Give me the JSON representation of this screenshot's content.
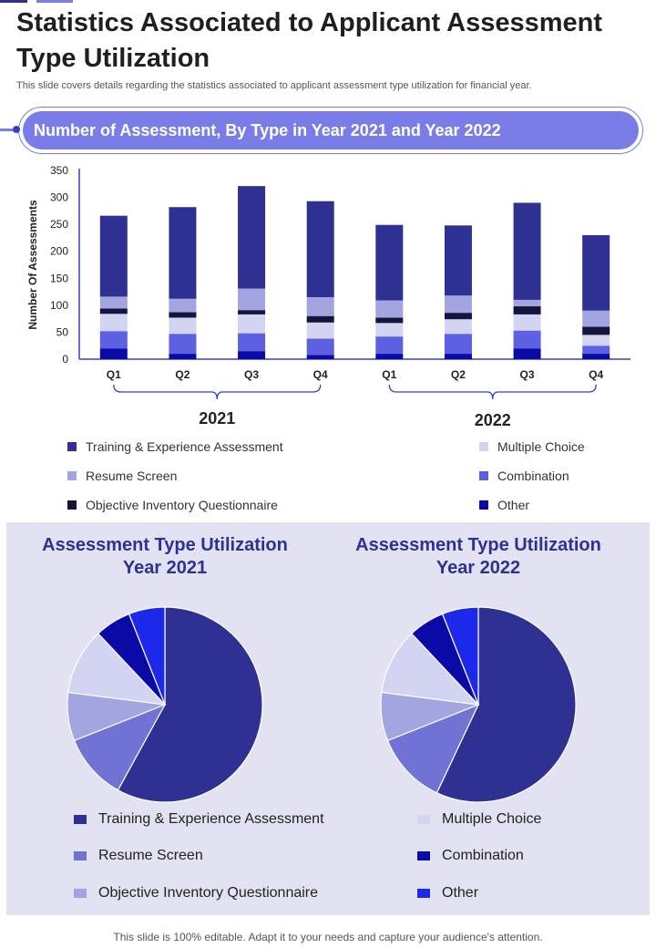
{
  "colors": {
    "accent": "#7a7de8",
    "dark_accent": "#2e3192",
    "panel_bg": "#e2e2f2",
    "series_colors": [
      "#2e3192",
      "#a3a5e0",
      "#14143c",
      "#d3d4f2",
      "#5d60e0",
      "#0a0aa6"
    ],
    "pie_colors": [
      "#2e3192",
      "#7072d4",
      "#a3a5e0",
      "#d3d4f2",
      "#0a0aa6",
      "#1d29ea"
    ]
  },
  "header": {
    "title": "Statistics Associated to Applicant Assessment Type Utilization",
    "subtitle": "This slide covers details regarding the statistics associated to applicant assessment type utilization for financial year."
  },
  "banner": {
    "title": "Number of Assessment, By Type in Year 2021 and Year 2022"
  },
  "chart_data": [
    {
      "type": "bar",
      "stacked": true,
      "title": "Number of Assessment, By Type in Year 2021 and Year 2022",
      "ylabel": "Number Of Assessments",
      "xlabel": "",
      "ylim": [
        0,
        350
      ],
      "yticks": [
        0,
        50,
        100,
        150,
        200,
        250,
        300,
        350
      ],
      "categories": [
        "Q1",
        "Q2",
        "Q3",
        "Q4",
        "Q1",
        "Q2",
        "Q3",
        "Q4"
      ],
      "groups": [
        {
          "label": "2021",
          "categories": [
            0,
            1,
            2,
            3
          ]
        },
        {
          "label": "2022",
          "categories": [
            4,
            5,
            6,
            7
          ]
        }
      ],
      "series": [
        {
          "name": "Other",
          "values": [
            20,
            10,
            15,
            8,
            10,
            10,
            20,
            10
          ]
        },
        {
          "name": "Combination",
          "values": [
            32,
            37,
            33,
            30,
            32,
            37,
            33,
            15
          ]
        },
        {
          "name": "Multiple Choice",
          "values": [
            32,
            30,
            35,
            30,
            25,
            27,
            30,
            20
          ]
        },
        {
          "name": "Objective Inventory Questionnaire",
          "values": [
            10,
            10,
            8,
            12,
            10,
            12,
            15,
            15
          ]
        },
        {
          "name": "Resume Screen",
          "values": [
            22,
            25,
            40,
            35,
            32,
            32,
            12,
            30
          ]
        },
        {
          "name": "Training & Experience Assessment",
          "values": [
            150,
            170,
            190,
            178,
            140,
            130,
            180,
            140
          ]
        }
      ],
      "legend": [
        "Training & Experience Assessment",
        "Multiple Choice",
        "Resume Screen",
        "Combination",
        "Objective Inventory Questionnaire",
        "Other"
      ]
    },
    {
      "type": "pie",
      "title": "Assessment Type Utilization Year 2021",
      "title_lines": [
        "Assessment Type Utilization",
        "Year 2021"
      ],
      "labels": [
        "Training & Experience Assessment",
        "Resume Screen",
        "Objective Inventory Questionnaire",
        "Multiple Choice",
        "Combination",
        "Other"
      ],
      "values": [
        58,
        11,
        8,
        11,
        6,
        6
      ]
    },
    {
      "type": "pie",
      "title": "Assessment Type Utilization Year 2022",
      "title_lines": [
        "Assessment Type Utilization",
        "Year  2022"
      ],
      "labels": [
        "Training & Experience Assessment",
        "Resume Screen",
        "Objective Inventory Questionnaire",
        "Multiple Choice",
        "Combination",
        "Other"
      ],
      "values": [
        57,
        12,
        8,
        11,
        6,
        6
      ]
    }
  ],
  "pie_legend": [
    "Training & Experience Assessment",
    "Multiple Choice",
    "Resume Screen",
    "Combination",
    "Objective Inventory  Questionnaire",
    "Other"
  ],
  "footer": "This slide is 100% editable. Adapt it to your needs and capture your audience's attention."
}
